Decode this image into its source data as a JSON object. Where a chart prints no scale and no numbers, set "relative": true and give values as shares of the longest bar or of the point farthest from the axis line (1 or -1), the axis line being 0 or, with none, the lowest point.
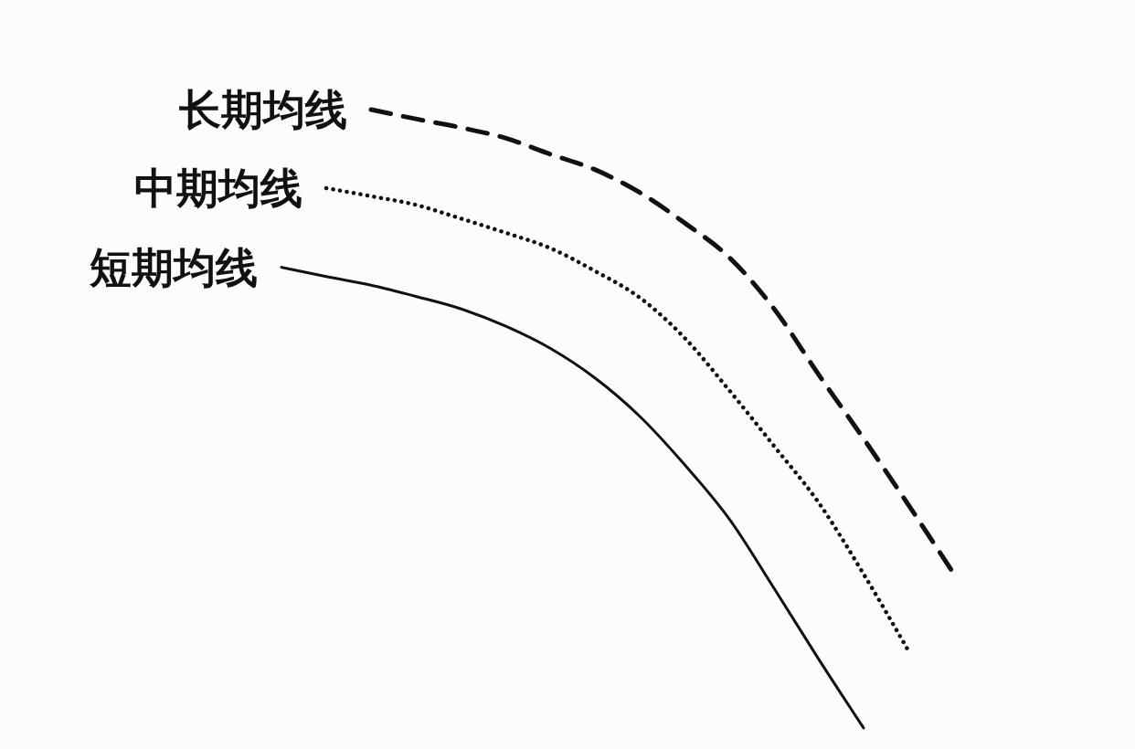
{
  "chart_data": {
    "type": "line",
    "relative": true,
    "categories": [
      null,
      null,
      null,
      null,
      null,
      null,
      null,
      null,
      null,
      null,
      null,
      null,
      null,
      null,
      null,
      null
    ],
    "series": [
      {
        "name": "长期均线",
        "color": "#111111",
        "line_style": "dashed",
        "values": [
          null,
          null,
          1.0,
          0.985,
          0.971,
          0.954,
          0.928,
          0.903,
          0.866,
          0.817,
          0.761,
          0.678,
          0.571,
          0.468,
          0.361,
          0.251
        ]
      },
      {
        "name": "中期均线",
        "color": "#111111",
        "line_style": "dotted",
        "values": [
          null,
          0.873,
          0.86,
          0.846,
          0.824,
          0.801,
          0.776,
          0.739,
          0.696,
          0.631,
          0.546,
          0.456,
          0.364,
          0.249,
          0.125,
          null
        ]
      },
      {
        "name": "短期均线",
        "color": "#111111",
        "line_style": "solid",
        "values": [
          0.745,
          0.73,
          0.716,
          0.698,
          0.678,
          0.65,
          0.614,
          0.566,
          0.504,
          0.426,
          0.338,
          0.226,
          0.111,
          0.0,
          null,
          null
        ]
      }
    ]
  }
}
